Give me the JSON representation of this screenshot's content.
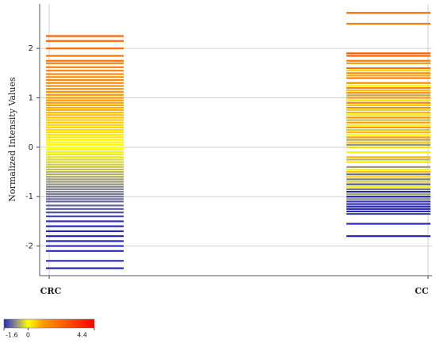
{
  "chart_data": {
    "type": "strip",
    "ylabel": "Normalized Intensity Values",
    "categories": [
      "CRC",
      "CC"
    ],
    "values": [
      [
        2.25,
        2.15,
        2.0,
        1.85,
        1.75,
        1.7,
        1.62,
        1.55,
        1.48,
        1.42,
        1.36,
        1.3,
        1.24,
        1.18,
        1.12,
        1.06,
        1.0,
        0.95,
        0.9,
        0.85,
        0.8,
        0.75,
        0.7,
        0.65,
        0.6,
        0.55,
        0.5,
        0.45,
        0.4,
        0.35,
        0.3,
        0.25,
        0.2,
        0.15,
        0.1,
        0.05,
        0.0,
        -0.05,
        -0.1,
        -0.15,
        -0.2,
        -0.25,
        -0.3,
        -0.35,
        -0.4,
        -0.45,
        -0.5,
        -0.55,
        -0.6,
        -0.65,
        -0.7,
        -0.75,
        -0.8,
        -0.85,
        -0.9,
        -0.95,
        -1.0,
        -1.05,
        -1.1,
        -1.18,
        -1.25,
        -1.32,
        -1.4,
        -1.5,
        -1.6,
        -1.7,
        -1.8,
        -1.9,
        -2.0,
        -2.1,
        -2.3,
        -2.45
      ],
      [
        1.9,
        1.85,
        2.72,
        1.6,
        1.4,
        2.5,
        1.75,
        1.2,
        0.9,
        1.5,
        1.1,
        0.8,
        1.3,
        0.6,
        1.7,
        0.4,
        1.0,
        0.5,
        0.2,
        1.45,
        0.7,
        -0.2,
        0.3,
        1.15,
        -0.5,
        0.1,
        0.85,
        -0.6,
        1.55,
        0.0,
        -0.3,
        0.65,
        -0.8,
        0.45,
        -0.1,
        1.25,
        -0.9,
        0.25,
        -0.45,
        0.95,
        -1.0,
        0.75,
        -0.7,
        0.35,
        -1.1,
        0.55,
        -0.25,
        1.05,
        -0.95,
        0.15,
        -1.2,
        -0.4,
        0.05,
        -1.05,
        -0.65,
        -1.15,
        -0.85,
        -1.25,
        -0.55,
        -1.3,
        -0.75,
        -1.0,
        -1.35,
        -1.1,
        -1.55,
        -0.9,
        -1.2,
        -1.8,
        -1.3,
        -1.0,
        -1.15,
        -1.25
      ]
    ],
    "ylim": [
      -2.6,
      2.9
    ],
    "yticks": [
      -2,
      -1,
      0,
      1,
      2
    ],
    "grid": true,
    "colorbar": {
      "lim": [
        -1.6,
        4.4
      ],
      "ticks": [
        -1.6,
        0,
        4.4
      ],
      "stops": [
        -1.6,
        -0.8,
        0,
        1,
        4.4
      ],
      "colors": [
        "#2a2ab8",
        "#8c8c8c",
        "#ffff00",
        "#ff9900",
        "#ff0000"
      ]
    }
  }
}
